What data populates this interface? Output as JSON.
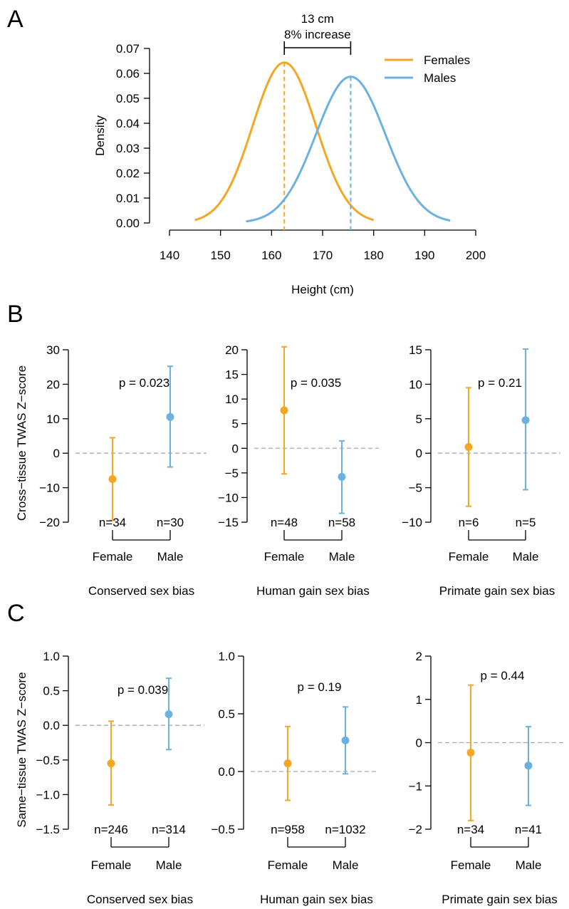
{
  "colors": {
    "female": "#F5A623",
    "male": "#6CB2E1",
    "zero_line": "#AAAAAA",
    "axis": "#000000"
  },
  "panel_labels": [
    "A",
    "B",
    "C"
  ],
  "chart_data": [
    {
      "type": "line",
      "panel": "A",
      "xlabel": "Height (cm)",
      "ylabel": "Density",
      "xlim": [
        140,
        200
      ],
      "ylim": [
        0,
        0.07
      ],
      "xticks": [
        140,
        150,
        160,
        170,
        180,
        190,
        200
      ],
      "yticks": [
        "0.00",
        "0.01",
        "0.02",
        "0.03",
        "0.04",
        "0.05",
        "0.06",
        "0.07"
      ],
      "series": [
        {
          "name": "Females",
          "mean": 162.5,
          "sd": 6.2,
          "x_range": [
            145,
            180
          ],
          "color": "#F5A623"
        },
        {
          "name": "Males",
          "mean": 175.5,
          "sd": 6.8,
          "x_range": [
            155,
            195
          ],
          "color": "#6CB2E1"
        }
      ],
      "annotation": {
        "line1": "13 cm",
        "line2": "8% increase",
        "x_from": 162.5,
        "x_to": 175.5
      }
    },
    {
      "type": "scatter",
      "panel": "B",
      "ylabel": "Cross−tissue TWAS Z−score",
      "title": "Conserved sex bias",
      "ylim": [
        -20,
        30
      ],
      "yticks": [
        {
          "v": -20,
          "t": "−20"
        },
        {
          "v": -10,
          "t": "−10"
        },
        {
          "v": 0,
          "t": "0"
        },
        {
          "v": 10,
          "t": "10"
        },
        {
          "v": 20,
          "t": "20"
        },
        {
          "v": 30,
          "t": "30"
        }
      ],
      "categories": [
        "Female",
        "Male"
      ],
      "points": [
        {
          "y": -7.5,
          "lo": -19.5,
          "hi": 4.5,
          "n": "n=34"
        },
        {
          "y": 10.5,
          "lo": -4.0,
          "hi": 25.2,
          "n": "n=30"
        }
      ],
      "pvalue": "p = 0.023"
    },
    {
      "type": "scatter",
      "panel": "B",
      "ylabel": "",
      "title": "Human gain sex bias",
      "ylim": [
        -15,
        20
      ],
      "yticks": [
        {
          "v": -15,
          "t": "−15"
        },
        {
          "v": -10,
          "t": "−10"
        },
        {
          "v": -5,
          "t": "−5"
        },
        {
          "v": 0,
          "t": "0"
        },
        {
          "v": 5,
          "t": "5"
        },
        {
          "v": 10,
          "t": "10"
        },
        {
          "v": 15,
          "t": "15"
        },
        {
          "v": 20,
          "t": "20"
        }
      ],
      "categories": [
        "Female",
        "Male"
      ],
      "points": [
        {
          "y": 7.7,
          "lo": -5.2,
          "hi": 20.6,
          "n": "n=48"
        },
        {
          "y": -5.8,
          "lo": -13.2,
          "hi": 1.5,
          "n": "n=58"
        }
      ],
      "pvalue": "p = 0.035"
    },
    {
      "type": "scatter",
      "panel": "B",
      "ylabel": "",
      "title": "Primate gain sex bias",
      "ylim": [
        -10,
        15
      ],
      "yticks": [
        {
          "v": -10,
          "t": "−10"
        },
        {
          "v": -5,
          "t": "−5"
        },
        {
          "v": 0,
          "t": "0"
        },
        {
          "v": 5,
          "t": "5"
        },
        {
          "v": 10,
          "t": "10"
        },
        {
          "v": 15,
          "t": "15"
        }
      ],
      "categories": [
        "Female",
        "Male"
      ],
      "points": [
        {
          "y": 0.9,
          "lo": -7.7,
          "hi": 9.5,
          "n": "n=6"
        },
        {
          "y": 4.8,
          "lo": -5.3,
          "hi": 15.1,
          "n": "n=5"
        }
      ],
      "pvalue": "p = 0.21"
    },
    {
      "type": "scatter",
      "panel": "C",
      "ylabel": "Same−tissue TWAS Z−score",
      "title": "Conserved sex bias",
      "ylim": [
        -1.5,
        1.0
      ],
      "yticks": [
        {
          "v": -1.5,
          "t": "−1.5"
        },
        {
          "v": -1.0,
          "t": "−1.0"
        },
        {
          "v": -0.5,
          "t": "−0.5"
        },
        {
          "v": 0,
          "t": "0.0"
        },
        {
          "v": 0.5,
          "t": "0.5"
        },
        {
          "v": 1.0,
          "t": "1.0"
        }
      ],
      "categories": [
        "Female",
        "Male"
      ],
      "points": [
        {
          "y": -0.55,
          "lo": -1.15,
          "hi": 0.06,
          "n": "n=246"
        },
        {
          "y": 0.16,
          "lo": -0.35,
          "hi": 0.68,
          "n": "n=314"
        }
      ],
      "pvalue": "p = 0.039"
    },
    {
      "type": "scatter",
      "panel": "C",
      "ylabel": "",
      "title": "Human gain sex bias",
      "ylim": [
        -0.5,
        1.0
      ],
      "yticks": [
        {
          "v": -0.5,
          "t": "−0.5"
        },
        {
          "v": 0,
          "t": "0.0"
        },
        {
          "v": 0.5,
          "t": "0.5"
        },
        {
          "v": 1.0,
          "t": "1.0"
        }
      ],
      "categories": [
        "Female",
        "Male"
      ],
      "points": [
        {
          "y": 0.07,
          "lo": -0.25,
          "hi": 0.39,
          "n": "n=958"
        },
        {
          "y": 0.27,
          "lo": -0.02,
          "hi": 0.56,
          "n": "n=1032"
        }
      ],
      "pvalue": "p = 0.19"
    },
    {
      "type": "scatter",
      "panel": "C",
      "ylabel": "",
      "title": "Primate gain sex bias",
      "ylim": [
        -2,
        2
      ],
      "yticks": [
        {
          "v": -2,
          "t": "−2"
        },
        {
          "v": -1,
          "t": "−1"
        },
        {
          "v": 0,
          "t": "0"
        },
        {
          "v": 1,
          "t": "1"
        },
        {
          "v": 2,
          "t": "2"
        }
      ],
      "categories": [
        "Female",
        "Male"
      ],
      "points": [
        {
          "y": -0.23,
          "lo": -1.8,
          "hi": 1.33,
          "n": "n=34"
        },
        {
          "y": -0.53,
          "lo": -1.45,
          "hi": 0.37,
          "n": "n=41"
        }
      ],
      "pvalue": "p = 0.44"
    }
  ]
}
